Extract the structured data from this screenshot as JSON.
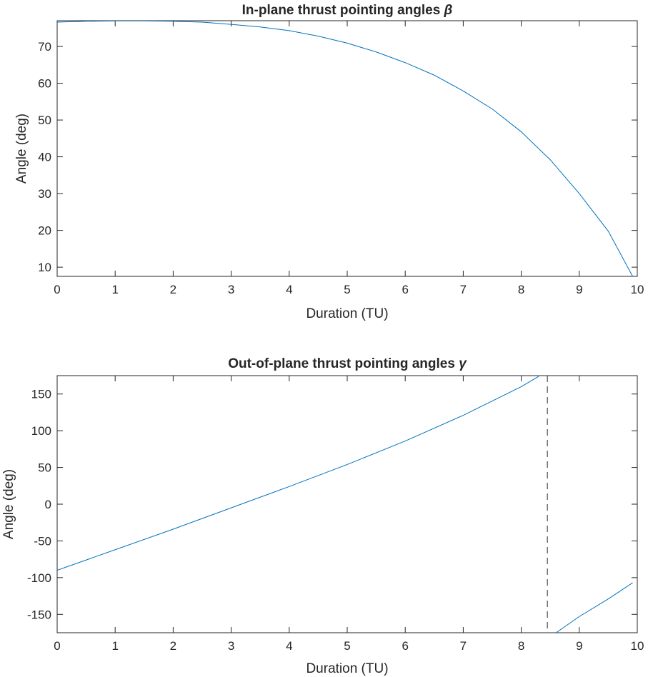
{
  "chart_data": [
    {
      "type": "line",
      "title": "In-plane thrust pointing angles",
      "title_symbol": "β",
      "xlabel": "Duration (TU)",
      "ylabel": "Angle (deg)",
      "xlim": [
        0,
        10
      ],
      "ylim": [
        7.5,
        77
      ],
      "xticks": [
        0,
        1,
        2,
        3,
        4,
        5,
        6,
        7,
        8,
        9,
        10
      ],
      "yticks": [
        10,
        20,
        30,
        40,
        50,
        60,
        70
      ],
      "grid": false,
      "colors": {
        "series": "#0072BD",
        "axes": "#262626"
      },
      "series": [
        {
          "x": [
            0,
            0.5,
            1,
            1.5,
            2,
            2.5,
            3,
            3.5,
            4,
            4.5,
            5,
            5.5,
            6,
            6.5,
            7,
            7.5,
            8,
            8.5,
            9,
            9.5,
            9.92
          ],
          "y": [
            76.6,
            76.85,
            76.95,
            76.95,
            76.85,
            76.6,
            76.0,
            75.3,
            74.3,
            72.8,
            70.9,
            68.5,
            65.6,
            62.2,
            57.9,
            53.0,
            46.8,
            39.2,
            30.0,
            19.8,
            7.5
          ]
        }
      ]
    },
    {
      "type": "line",
      "title": "Out-of-plane thrust pointing angles",
      "title_symbol": "γ",
      "xlabel": "Duration (TU)",
      "ylabel": "Angle (deg)",
      "xlim": [
        0,
        10
      ],
      "ylim": [
        -175,
        175
      ],
      "xticks": [
        0,
        1,
        2,
        3,
        4,
        5,
        6,
        7,
        8,
        9,
        10
      ],
      "yticks": [
        -150,
        -100,
        -50,
        0,
        50,
        100,
        150
      ],
      "grid": false,
      "colors": {
        "series": "#0072BD",
        "axes": "#262626"
      },
      "vertical_marker": {
        "x": 8.45,
        "style": "dashed"
      },
      "series": [
        {
          "segments": [
            {
              "x": [
                0,
                1,
                2,
                3,
                4,
                5,
                6,
                7,
                8,
                8.3
              ],
              "y": [
                -90,
                -62,
                -34,
                -5,
                24,
                54,
                86,
                121,
                160,
                174
              ]
            },
            {
              "x": [
                8.6,
                9,
                9.5,
                9.92
              ],
              "y": [
                -175,
                -153,
                -129,
                -107
              ]
            }
          ]
        }
      ]
    }
  ]
}
